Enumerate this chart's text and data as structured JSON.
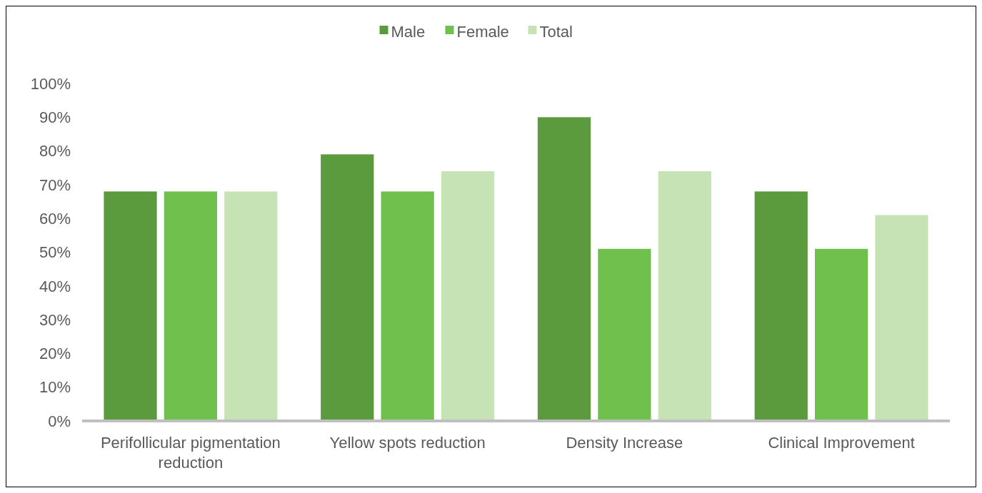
{
  "chart_data": {
    "type": "bar",
    "categories": [
      "Perifollicular pigmentation reduction",
      "Yellow spots reduction",
      "Density Increase",
      "Clinical Improvement"
    ],
    "series": [
      {
        "name": "Male",
        "color": "#5b9b3e",
        "values": [
          68,
          79,
          90,
          68
        ]
      },
      {
        "name": "Female",
        "color": "#6fc04c",
        "values": [
          68,
          68,
          51,
          51
        ]
      },
      {
        "name": "Total",
        "color": "#c6e3b5",
        "values": [
          68,
          74,
          74,
          61
        ]
      }
    ],
    "ylim": [
      0,
      100
    ],
    "yticks": [
      {
        "value": 0,
        "label": "0%"
      },
      {
        "value": 10,
        "label": "10%"
      },
      {
        "value": 20,
        "label": "20%"
      },
      {
        "value": 30,
        "label": "30%"
      },
      {
        "value": 40,
        "label": "40%"
      },
      {
        "value": 50,
        "label": "50%"
      },
      {
        "value": 60,
        "label": "60%"
      },
      {
        "value": 70,
        "label": "70%"
      },
      {
        "value": 80,
        "label": "80%"
      },
      {
        "value": 90,
        "label": "90%"
      },
      {
        "value": 100,
        "label": "100%"
      }
    ],
    "grid": false,
    "legend": "top"
  }
}
